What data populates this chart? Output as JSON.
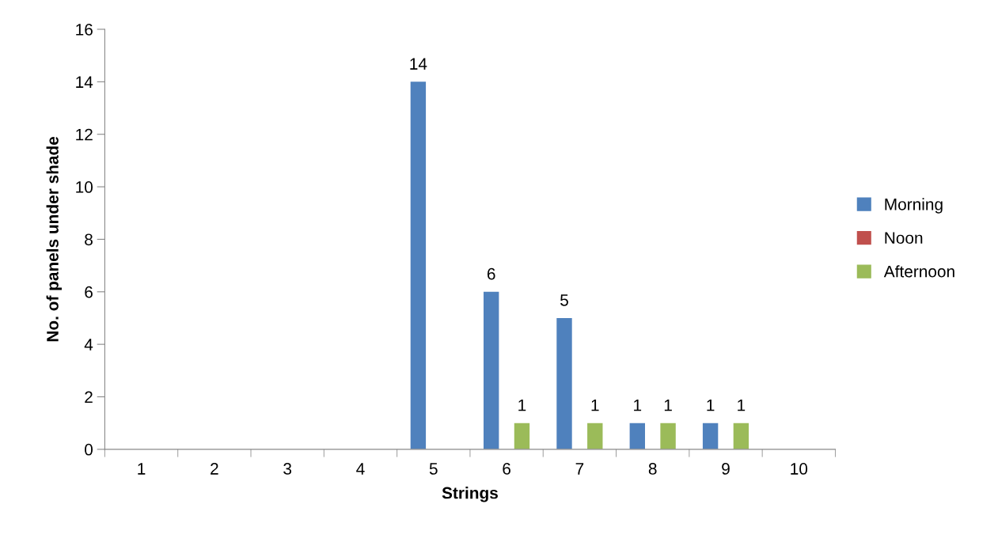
{
  "chart_data": {
    "type": "bar",
    "xlabel": "Strings",
    "ylabel": "No. of panels under shade",
    "categories": [
      "1",
      "2",
      "3",
      "4",
      "5",
      "6",
      "7",
      "8",
      "9",
      "10"
    ],
    "series": [
      {
        "name": "Morning",
        "color": "#4f81bd",
        "values": [
          0,
          0,
          0,
          0,
          14,
          6,
          5,
          1,
          1,
          0
        ],
        "value_labels": [
          null,
          null,
          null,
          null,
          "14",
          "6",
          "5",
          "1",
          "1",
          null
        ]
      },
      {
        "name": "Noon",
        "color": "#c0504d",
        "values": [
          0,
          0,
          0,
          0,
          0,
          0,
          0,
          0,
          0,
          0
        ]
      },
      {
        "name": "Afternoon",
        "color": "#9bbb59",
        "values": [
          0,
          0,
          0,
          0,
          0,
          1,
          1,
          1,
          1,
          0
        ],
        "value_labels": [
          null,
          null,
          null,
          null,
          null,
          "1",
          "1",
          "1",
          "1",
          null
        ]
      }
    ],
    "ylim": [
      0,
      16
    ],
    "yticks": [
      0,
      2,
      4,
      6,
      8,
      10,
      12,
      14,
      16
    ],
    "grid": false,
    "legend": "right"
  }
}
